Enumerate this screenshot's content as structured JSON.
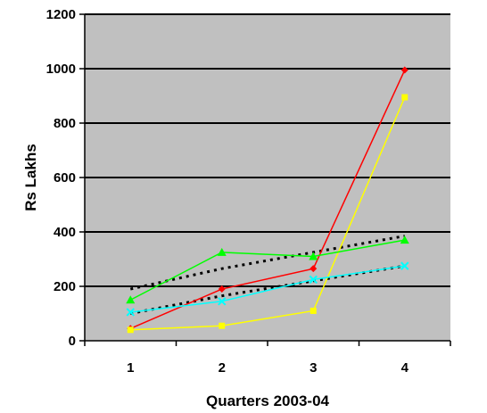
{
  "chart_data": {
    "type": "line",
    "title": "",
    "xlabel": "Quarters 2003-04",
    "ylabel": "Rs Lakhs",
    "x": [
      1,
      2,
      3,
      4
    ],
    "xlim": [
      0.5,
      4.5
    ],
    "ylim": [
      0,
      1200
    ],
    "yticks": [
      0,
      200,
      400,
      600,
      800,
      1000,
      1200
    ],
    "grid": "horizontal",
    "plot_background": "#c0c0c0",
    "series": [
      {
        "color": "#ff0000",
        "marker": "diamond",
        "values": [
          45,
          190,
          265,
          995
        ]
      },
      {
        "color": "#ffff00",
        "marker": "square",
        "values": [
          40,
          55,
          110,
          895
        ]
      },
      {
        "color": "#00ff00",
        "marker": "triangle",
        "values": [
          150,
          325,
          310,
          370
        ]
      },
      {
        "color": "#00ffff",
        "marker": "x",
        "values": [
          105,
          145,
          225,
          275
        ]
      }
    ],
    "trendlines": [
      {
        "color": "#000000",
        "style": "dotted",
        "values": [
          190,
          265,
          325,
          385
        ]
      },
      {
        "color": "#000000",
        "style": "dotted",
        "values": [
          100,
          165,
          220,
          275
        ]
      }
    ]
  }
}
